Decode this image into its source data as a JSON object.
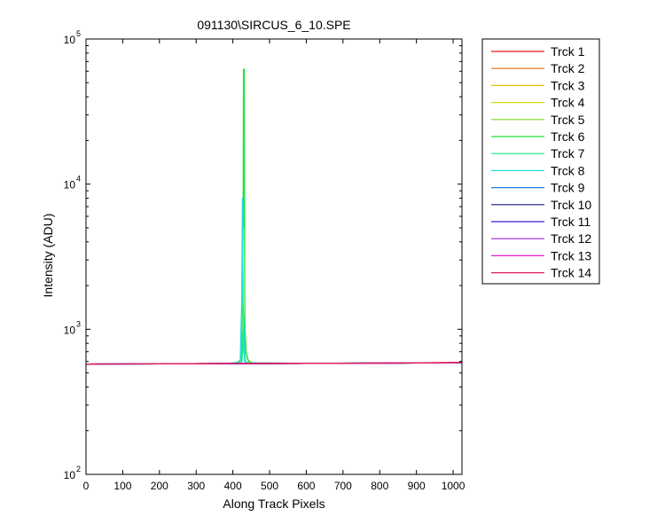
{
  "chart_data": {
    "type": "line",
    "title": "091130\\SIRCUS_6_10.SPE",
    "xlabel": "Along Track Pixels",
    "ylabel": "Intensity (ADU)",
    "xlim": [
      0,
      1024
    ],
    "ylim": [
      100,
      100000
    ],
    "yscale": "log",
    "grid": false,
    "legend_position": "outside-right",
    "x_ticks": [
      0,
      100,
      200,
      300,
      400,
      500,
      600,
      700,
      800,
      900,
      1000
    ],
    "x_tick_labels": [
      "0",
      "100",
      "200",
      "300",
      "400",
      "500",
      "600",
      "700",
      "800",
      "900",
      "1000"
    ],
    "y_ticks": [
      {
        "value": 100,
        "base": "10",
        "exp": "2"
      },
      {
        "value": 1000,
        "base": "10",
        "exp": "3"
      },
      {
        "value": 10000,
        "base": "10",
        "exp": "4"
      },
      {
        "value": 100000,
        "base": "10",
        "exp": "5"
      }
    ],
    "baseline": [
      {
        "x": 0,
        "y": 575
      },
      {
        "x": 200,
        "y": 578
      },
      {
        "x": 400,
        "y": 580
      },
      {
        "x": 600,
        "y": 582
      },
      {
        "x": 800,
        "y": 584
      },
      {
        "x": 1024,
        "y": 590
      }
    ],
    "series": [
      {
        "name": "Trck 1",
        "color": "#e8191d",
        "points": [
          [
            0,
            575
          ],
          [
            200,
            578
          ],
          [
            400,
            580
          ],
          [
            600,
            582
          ],
          [
            800,
            584
          ],
          [
            1024,
            590
          ]
        ]
      },
      {
        "name": "Trck 2",
        "color": "#f06a10",
        "points": [
          [
            0,
            575
          ],
          [
            200,
            578
          ],
          [
            400,
            580
          ],
          [
            600,
            582
          ],
          [
            800,
            584
          ],
          [
            1024,
            589
          ]
        ]
      },
      {
        "name": "Trck 3",
        "color": "#f0bf00",
        "points": [
          [
            0,
            575
          ],
          [
            200,
            578
          ],
          [
            400,
            580
          ],
          [
            600,
            582
          ],
          [
            800,
            584
          ],
          [
            1024,
            588
          ]
        ]
      },
      {
        "name": "Trck 4",
        "color": "#cde000",
        "points": [
          [
            0,
            575
          ],
          [
            200,
            578
          ],
          [
            400,
            580
          ],
          [
            600,
            582
          ],
          [
            800,
            584
          ],
          [
            1024,
            587
          ]
        ]
      },
      {
        "name": "Trck 5",
        "color": "#7ddb1f",
        "points": [
          [
            0,
            575
          ],
          [
            200,
            578
          ],
          [
            400,
            580
          ],
          [
            420,
            585
          ],
          [
            428,
            700
          ],
          [
            432,
            1100
          ],
          [
            436,
            700
          ],
          [
            444,
            585
          ],
          [
            600,
            582
          ],
          [
            800,
            584
          ],
          [
            1024,
            588
          ]
        ]
      },
      {
        "name": "Trck 6",
        "color": "#1fe63a",
        "points": [
          [
            0,
            575
          ],
          [
            200,
            578
          ],
          [
            380,
            580
          ],
          [
            410,
            590
          ],
          [
            420,
            610
          ],
          [
            424,
            700
          ],
          [
            426,
            1500
          ],
          [
            428,
            6000
          ],
          [
            429,
            62000
          ],
          [
            430,
            5000
          ],
          [
            431,
            62000
          ],
          [
            432,
            3000
          ],
          [
            433,
            1000
          ],
          [
            436,
            700
          ],
          [
            440,
            620
          ],
          [
            450,
            590
          ],
          [
            460,
            585
          ],
          [
            600,
            582
          ],
          [
            800,
            584
          ],
          [
            1024,
            588
          ]
        ]
      },
      {
        "name": "Trck 7",
        "color": "#1fe38c",
        "points": [
          [
            0,
            575
          ],
          [
            200,
            578
          ],
          [
            400,
            580
          ],
          [
            425,
            600
          ],
          [
            430,
            1200
          ],
          [
            434,
            600
          ],
          [
            445,
            585
          ],
          [
            600,
            582
          ],
          [
            800,
            584
          ],
          [
            1024,
            588
          ]
        ]
      },
      {
        "name": "Trck 8",
        "color": "#22e0e0",
        "points": [
          [
            0,
            575
          ],
          [
            200,
            578
          ],
          [
            400,
            580
          ],
          [
            420,
            600
          ],
          [
            424,
            1500
          ],
          [
            426,
            8000
          ],
          [
            428,
            1500
          ],
          [
            432,
            600
          ],
          [
            440,
            585
          ],
          [
            600,
            582
          ],
          [
            800,
            584
          ],
          [
            1024,
            588
          ]
        ]
      },
      {
        "name": "Trck 9",
        "color": "#1f7fe0",
        "points": [
          [
            0,
            575
          ],
          [
            200,
            578
          ],
          [
            400,
            580
          ],
          [
            600,
            582
          ],
          [
            800,
            584
          ],
          [
            1024,
            588
          ]
        ]
      },
      {
        "name": "Trck 10",
        "color": "#1a1a8c",
        "points": [
          [
            0,
            575
          ],
          [
            200,
            578
          ],
          [
            400,
            580
          ],
          [
            600,
            582
          ],
          [
            800,
            584
          ],
          [
            1024,
            588
          ]
        ]
      },
      {
        "name": "Trck 11",
        "color": "#3b1fe0",
        "points": [
          [
            0,
            575
          ],
          [
            200,
            578
          ],
          [
            400,
            580
          ],
          [
            600,
            582
          ],
          [
            800,
            584
          ],
          [
            1024,
            588
          ]
        ]
      },
      {
        "name": "Trck 12",
        "color": "#9c1fe0",
        "points": [
          [
            0,
            575
          ],
          [
            200,
            578
          ],
          [
            400,
            580
          ],
          [
            600,
            582
          ],
          [
            800,
            584
          ],
          [
            1024,
            588
          ]
        ]
      },
      {
        "name": "Trck 13",
        "color": "#e01fcf",
        "points": [
          [
            0,
            575
          ],
          [
            200,
            578
          ],
          [
            400,
            580
          ],
          [
            600,
            582
          ],
          [
            800,
            584
          ],
          [
            1024,
            588
          ]
        ]
      },
      {
        "name": "Trck 14",
        "color": "#e01f5a",
        "points": [
          [
            0,
            575
          ],
          [
            200,
            578
          ],
          [
            400,
            580
          ],
          [
            600,
            582
          ],
          [
            800,
            584
          ],
          [
            1024,
            590
          ]
        ]
      }
    ]
  }
}
